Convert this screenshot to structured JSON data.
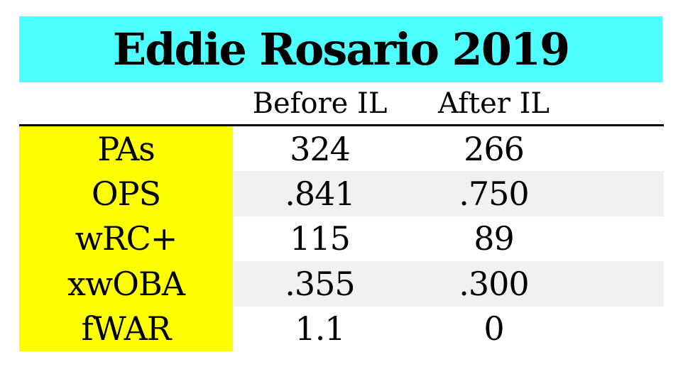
{
  "title": "Eddie Rosario 2019",
  "table": {
    "columns": [
      "Before IL",
      "After IL"
    ],
    "rows": [
      {
        "label": "PAs",
        "before": "324",
        "after": "266"
      },
      {
        "label": "OPS",
        "before": ".841",
        "after": ".750"
      },
      {
        "label": "wRC+",
        "before": "115",
        "after": "89"
      },
      {
        "label": "xwOBA",
        "before": ".355",
        "after": ".300"
      },
      {
        "label": "fWAR",
        "before": "1.1",
        "after": "0"
      }
    ]
  },
  "colors": {
    "banner": "#4dffff",
    "label_highlight": "#ffff00",
    "row_stripe": "#f1f1f1",
    "text": "#000000"
  },
  "chart_data": {
    "type": "table",
    "title": "Eddie Rosario 2019",
    "columns": [
      "",
      "Before IL",
      "After IL"
    ],
    "rows": [
      [
        "PAs",
        324,
        266
      ],
      [
        "OPS",
        0.841,
        0.75
      ],
      [
        "wRC+",
        115,
        89
      ],
      [
        "xwOBA",
        0.355,
        0.3
      ],
      [
        "fWAR",
        1.1,
        0
      ]
    ],
    "layout_hints": {
      "title_banner_color": "#4dffff",
      "label_column_color": "#ffff00",
      "alternating_row_color": "#f1f1f1",
      "header_divider": "solid black line"
    }
  }
}
